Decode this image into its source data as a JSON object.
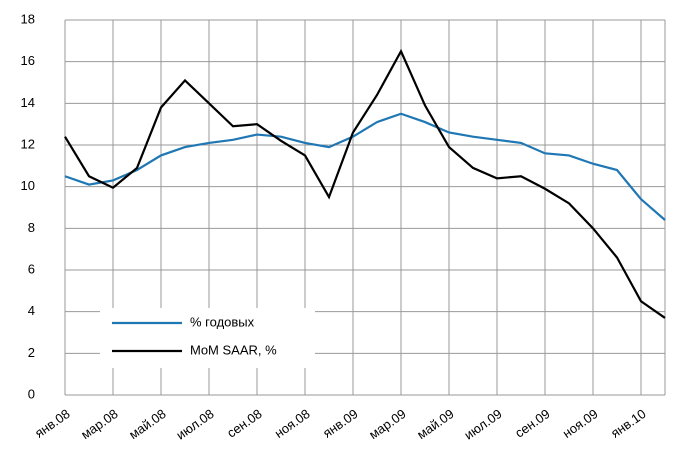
{
  "chart_data": {
    "type": "line",
    "categories": [
      "янв.08",
      null,
      "мар.08",
      null,
      "май.08",
      null,
      "июл.08",
      null,
      "сен.08",
      null,
      "ноя.08",
      null,
      "янв.09",
      null,
      "мар.09",
      null,
      "май.09",
      null,
      "июл.09",
      null,
      "сен.09",
      null,
      "ноя.09",
      null,
      "янв.10",
      null
    ],
    "series": [
      {
        "name": "% годовых",
        "color": "#1f77b4",
        "values": [
          10.5,
          10.1,
          10.3,
          10.8,
          11.5,
          11.9,
          12.1,
          12.25,
          12.5,
          12.4,
          12.1,
          11.9,
          12.4,
          13.1,
          13.5,
          13.1,
          12.6,
          12.4,
          12.25,
          12.1,
          11.6,
          11.5,
          11.1,
          10.8,
          9.4,
          8.4
        ]
      },
      {
        "name": "MoM SAAR, %",
        "color": "#000000",
        "values": [
          12.4,
          10.5,
          9.95,
          10.9,
          13.8,
          15.1,
          14.0,
          12.9,
          13.0,
          12.2,
          11.5,
          9.5,
          12.6,
          14.4,
          16.5,
          13.9,
          11.9,
          10.9,
          10.4,
          10.5,
          9.9,
          9.2,
          8.0,
          6.6,
          4.5,
          3.7
        ]
      }
    ],
    "ylim": [
      0,
      18
    ],
    "yticks": [
      0,
      2,
      4,
      6,
      8,
      10,
      12,
      14,
      16,
      18
    ],
    "grid": true,
    "legend": "lower-left"
  }
}
